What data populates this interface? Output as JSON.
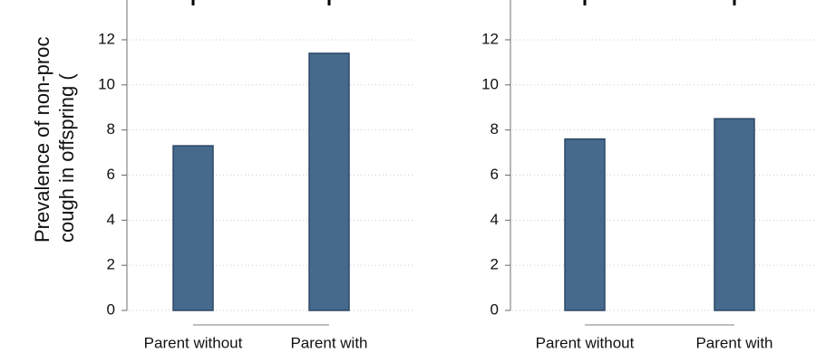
{
  "chart_data": [
    {
      "type": "bar",
      "categories": [
        "Parent without",
        "Parent with"
      ],
      "values": [
        7.3,
        11.4
      ],
      "color": "#46698c",
      "ylabel": [
        "Prevalence of non-proc",
        "cough in offspring ("
      ],
      "ylim": [
        0,
        14
      ],
      "yticks": [
        0,
        2,
        4,
        6,
        8,
        10,
        12
      ],
      "grid": true
    },
    {
      "type": "bar",
      "categories": [
        "Parent without",
        "Parent with"
      ],
      "values": [
        7.6,
        8.5
      ],
      "color": "#46698c",
      "ylim": [
        0,
        14
      ],
      "yticks": [
        0,
        2,
        4,
        6,
        8,
        10,
        12
      ],
      "grid": true
    }
  ]
}
